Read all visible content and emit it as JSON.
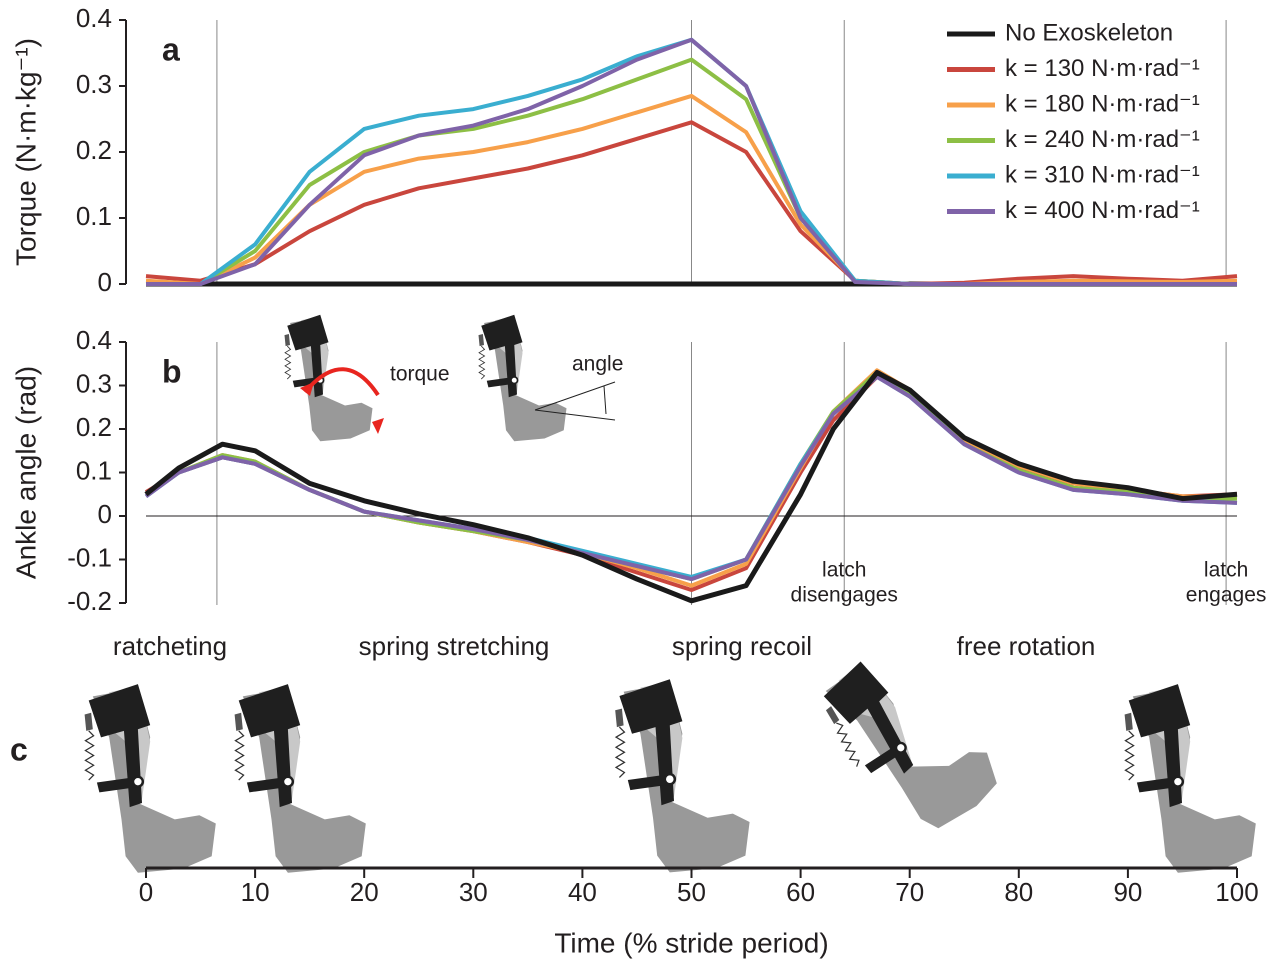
{
  "chart_data": [
    {
      "type": "line",
      "panel_label": "a",
      "ylabel": "Torque (N·m·kg⁻¹)",
      "xlim": [
        0,
        100
      ],
      "ylim": [
        0,
        0.4
      ],
      "yticks": [
        0,
        0.1,
        0.2,
        0.3,
        0.4
      ],
      "vlines": [
        6.5,
        50,
        64,
        99
      ],
      "legend": "upper right",
      "x": [
        0,
        5,
        10,
        15,
        20,
        25,
        30,
        35,
        40,
        45,
        50,
        55,
        60,
        65,
        70,
        75,
        80,
        85,
        90,
        95,
        100
      ],
      "series": [
        {
          "name": "No Exoskeleton",
          "color": "#1a1a1a",
          "values": [
            0,
            0,
            0,
            0,
            0,
            0,
            0,
            0,
            0,
            0,
            0,
            0,
            0,
            0,
            0,
            0,
            0,
            0,
            0,
            0,
            0
          ]
        },
        {
          "name": "k = 130 N·m·rad⁻¹",
          "color": "#c9463d",
          "values": [
            0.012,
            0.005,
            0.03,
            0.08,
            0.12,
            0.145,
            0.16,
            0.175,
            0.195,
            0.22,
            0.245,
            0.2,
            0.08,
            0.005,
            0,
            0.002,
            0.008,
            0.012,
            0.008,
            0.005,
            0.012
          ]
        },
        {
          "name": "k = 180 N·m·rad⁻¹",
          "color": "#f7a04a",
          "values": [
            0.005,
            0,
            0.04,
            0.12,
            0.17,
            0.19,
            0.2,
            0.215,
            0.235,
            0.26,
            0.285,
            0.23,
            0.09,
            0.005,
            0,
            0,
            0.003,
            0.005,
            0.004,
            0.003,
            0.005
          ]
        },
        {
          "name": "k = 240 N·m·rad⁻¹",
          "color": "#8dbf45",
          "values": [
            0,
            0,
            0.05,
            0.15,
            0.2,
            0.225,
            0.235,
            0.255,
            0.28,
            0.31,
            0.34,
            0.28,
            0.1,
            0.005,
            0,
            0,
            0,
            0,
            0,
            0,
            0
          ]
        },
        {
          "name": "k = 310 N·m·rad⁻¹",
          "color": "#3aaed0",
          "values": [
            0,
            0,
            0.06,
            0.17,
            0.235,
            0.255,
            0.265,
            0.285,
            0.31,
            0.345,
            0.37,
            0.3,
            0.11,
            0.005,
            0,
            0,
            0,
            0,
            0,
            0,
            0
          ]
        },
        {
          "name": "k = 400 N·m·rad⁻¹",
          "color": "#7f63a8",
          "values": [
            0,
            0,
            0.03,
            0.12,
            0.195,
            0.225,
            0.24,
            0.265,
            0.3,
            0.34,
            0.37,
            0.3,
            0.1,
            0.003,
            0,
            0,
            0,
            0,
            0,
            0,
            0
          ]
        }
      ]
    },
    {
      "type": "line",
      "panel_label": "b",
      "ylabel": "Ankle angle (rad)",
      "xlim": [
        0,
        100
      ],
      "ylim": [
        -0.2,
        0.4
      ],
      "yticks": [
        -0.2,
        -0.1,
        0,
        0.1,
        0.2,
        0.3,
        0.4
      ],
      "xticks": [
        0,
        10,
        20,
        30,
        40,
        50,
        60,
        70,
        80,
        90,
        100
      ],
      "xlabel": "Time (% stride period)",
      "vlines": [
        6.5,
        50,
        64,
        99
      ],
      "zero_line": true,
      "inset_labels": [
        "torque",
        "angle"
      ],
      "latch_disengages": [
        "latch",
        "disengages"
      ],
      "latch_engages": [
        "latch",
        "engages"
      ],
      "x": [
        0,
        3,
        7,
        10,
        15,
        20,
        25,
        30,
        35,
        40,
        45,
        50,
        55,
        60,
        63,
        67,
        70,
        75,
        80,
        85,
        90,
        95,
        100
      ],
      "series": [
        {
          "name": "k = 130 N·m·rad⁻¹",
          "color": "#c9463d",
          "values": [
            0.055,
            0.1,
            0.135,
            0.12,
            0.06,
            0.01,
            -0.015,
            -0.035,
            -0.06,
            -0.09,
            -0.13,
            -0.17,
            -0.12,
            0.1,
            0.22,
            0.32,
            0.28,
            0.17,
            0.11,
            0.075,
            0.06,
            0.045,
            0.05
          ]
        },
        {
          "name": "k = 180 N·m·rad⁻¹",
          "color": "#f7a04a",
          "values": [
            0.05,
            0.1,
            0.14,
            0.125,
            0.06,
            0.01,
            -0.015,
            -0.035,
            -0.06,
            -0.085,
            -0.12,
            -0.16,
            -0.11,
            0.11,
            0.24,
            0.335,
            0.29,
            0.175,
            0.115,
            0.075,
            0.06,
            0.045,
            0.045
          ]
        },
        {
          "name": "k = 240 N·m·rad⁻¹",
          "color": "#8dbf45",
          "values": [
            0.05,
            0.1,
            0.14,
            0.125,
            0.06,
            0.01,
            -0.015,
            -0.035,
            -0.055,
            -0.085,
            -0.115,
            -0.145,
            -0.1,
            0.12,
            0.24,
            0.33,
            0.28,
            0.165,
            0.105,
            0.065,
            0.055,
            0.04,
            0.04
          ]
        },
        {
          "name": "k = 310 N·m·rad⁻¹",
          "color": "#3aaed0",
          "values": [
            0.045,
            0.1,
            0.135,
            0.12,
            0.06,
            0.01,
            -0.01,
            -0.03,
            -0.05,
            -0.08,
            -0.11,
            -0.14,
            -0.1,
            0.12,
            0.235,
            0.32,
            0.275,
            0.165,
            0.1,
            0.06,
            0.05,
            0.035,
            0.03
          ]
        },
        {
          "name": "k = 400 N·m·rad⁻¹",
          "color": "#7f63a8",
          "values": [
            0.045,
            0.1,
            0.135,
            0.12,
            0.06,
            0.01,
            -0.01,
            -0.03,
            -0.055,
            -0.085,
            -0.115,
            -0.145,
            -0.1,
            0.115,
            0.235,
            0.32,
            0.275,
            0.165,
            0.1,
            0.06,
            0.05,
            0.035,
            0.03
          ]
        },
        {
          "name": "No Exoskeleton",
          "color": "#1a1a1a",
          "values": [
            0.05,
            0.11,
            0.165,
            0.15,
            0.075,
            0.035,
            0.005,
            -0.02,
            -0.05,
            -0.09,
            -0.145,
            -0.195,
            -0.16,
            0.05,
            0.2,
            0.33,
            0.29,
            0.18,
            0.12,
            0.08,
            0.065,
            0.04,
            0.05
          ]
        }
      ]
    }
  ],
  "panel_c": {
    "label": "c",
    "phases": [
      "ratcheting",
      "spring stretching",
      "spring recoil",
      "free rotation"
    ]
  }
}
